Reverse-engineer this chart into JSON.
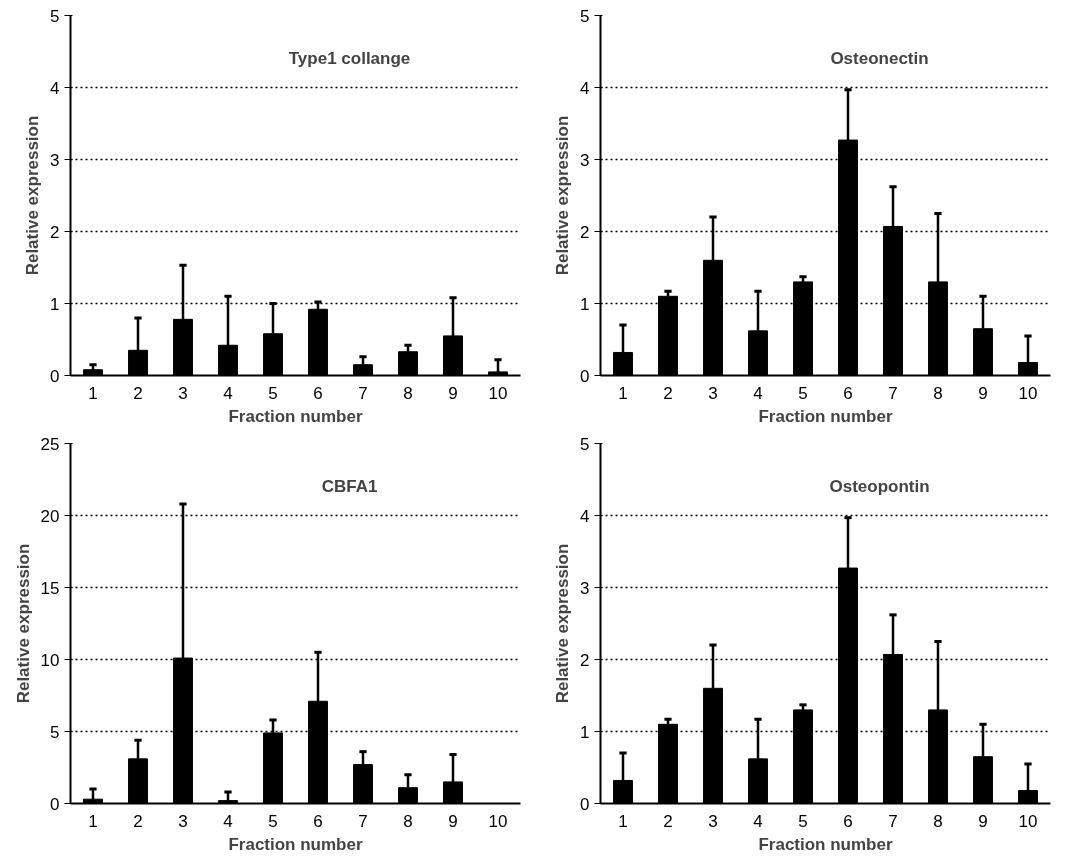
{
  "chart_data": [
    {
      "type": "bar",
      "title": "Type1 collange",
      "xlabel": "Fraction number",
      "ylabel": "Relative expression",
      "categories": [
        "1",
        "2",
        "3",
        "4",
        "5",
        "6",
        "7",
        "8",
        "9",
        "10"
      ],
      "values": [
        0.08,
        0.35,
        0.78,
        0.42,
        0.58,
        0.92,
        0.15,
        0.33,
        0.55,
        0.05
      ],
      "errors": [
        [
          0.08,
          0.15
        ],
        [
          0.35,
          0.8
        ],
        [
          0.78,
          1.53
        ],
        [
          0.42,
          1.1
        ],
        [
          0.58,
          1.0
        ],
        [
          0.92,
          1.02
        ],
        [
          0.15,
          0.26
        ],
        [
          0.33,
          0.42
        ],
        [
          0.55,
          1.08
        ],
        [
          0.05,
          0.22
        ]
      ],
      "color": "#000000",
      "ylim": [
        0,
        5
      ],
      "yticks": [
        0,
        1,
        2,
        3,
        4,
        5
      ],
      "grid": "y"
    },
    {
      "type": "bar",
      "title": "Osteonectin",
      "xlabel": "Fraction number",
      "ylabel": "Relative expression",
      "categories": [
        "1",
        "2",
        "3",
        "4",
        "5",
        "6",
        "7",
        "8",
        "9",
        "10"
      ],
      "values": [
        0.32,
        1.1,
        1.6,
        0.62,
        1.3,
        3.27,
        2.07,
        1.3,
        0.65,
        0.18
      ],
      "errors": [
        [
          0.32,
          0.7
        ],
        [
          1.1,
          1.17
        ],
        [
          1.6,
          2.2
        ],
        [
          0.62,
          1.17
        ],
        [
          1.3,
          1.37
        ],
        [
          3.27,
          3.97
        ],
        [
          2.07,
          2.62
        ],
        [
          1.3,
          2.25
        ],
        [
          0.65,
          1.1
        ],
        [
          0.18,
          0.55
        ]
      ],
      "color": "#000000",
      "ylim": [
        0,
        5
      ],
      "yticks": [
        0,
        1,
        2,
        3,
        4,
        5
      ],
      "grid": "y"
    },
    {
      "type": "bar",
      "title": "CBFA1",
      "xlabel": "Fraction number",
      "ylabel": "Relative expression",
      "categories": [
        "1",
        "2",
        "3",
        "4",
        "5",
        "6",
        "7",
        "8",
        "9",
        "10"
      ],
      "values": [
        0.3,
        3.1,
        10.1,
        0.2,
        4.9,
        7.1,
        2.7,
        1.1,
        1.5,
        null
      ],
      "errors": [
        [
          0.3,
          1.0
        ],
        [
          3.1,
          4.4
        ],
        [
          10.1,
          20.8
        ],
        [
          0.2,
          0.8
        ],
        [
          4.9,
          5.8
        ],
        [
          7.1,
          10.5
        ],
        [
          2.7,
          3.6
        ],
        [
          1.1,
          2.0
        ],
        [
          1.5,
          3.4
        ],
        null
      ],
      "color": "#000000",
      "ylim": [
        0,
        25
      ],
      "yticks": [
        0,
        5,
        10,
        15,
        20,
        25
      ],
      "grid": "y"
    },
    {
      "type": "bar",
      "title": "Osteopontin",
      "xlabel": "Fraction number",
      "ylabel": "Relative expression",
      "categories": [
        "1",
        "2",
        "3",
        "4",
        "5",
        "6",
        "7",
        "8",
        "9",
        "10"
      ],
      "values": [
        0.32,
        1.1,
        1.6,
        0.62,
        1.3,
        3.27,
        2.07,
        1.3,
        0.65,
        0.18
      ],
      "errors": [
        [
          0.32,
          0.7
        ],
        [
          1.1,
          1.17
        ],
        [
          1.6,
          2.2
        ],
        [
          0.62,
          1.17
        ],
        [
          1.3,
          1.37
        ],
        [
          3.27,
          3.97
        ],
        [
          2.07,
          2.62
        ],
        [
          1.3,
          2.25
        ],
        [
          0.65,
          1.1
        ],
        [
          0.18,
          0.55
        ]
      ],
      "color": "#000000",
      "ylim": [
        0,
        5
      ],
      "yticks": [
        0,
        1,
        2,
        3,
        4,
        5
      ],
      "grid": "y"
    }
  ]
}
